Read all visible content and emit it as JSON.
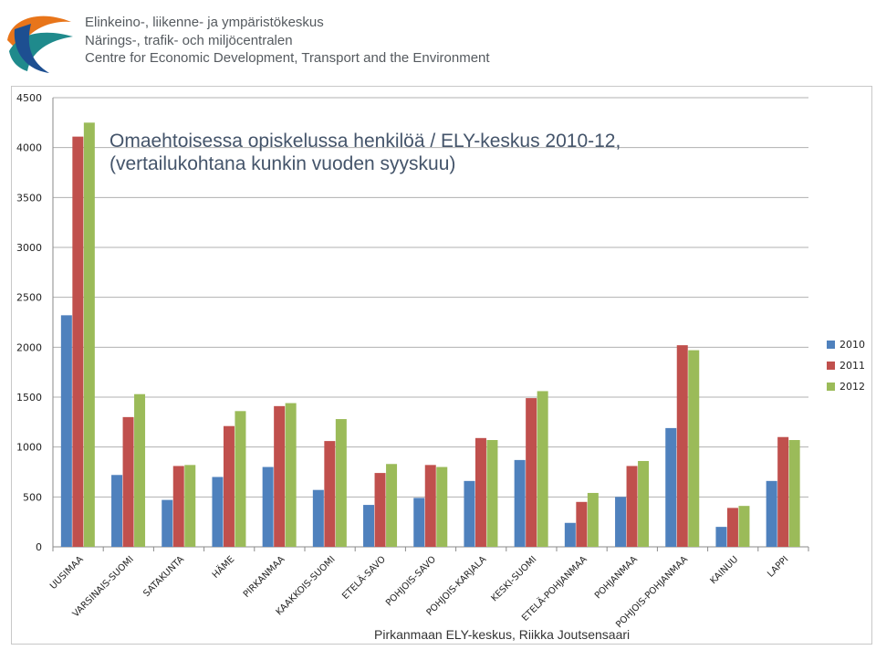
{
  "header": {
    "org_lines": [
      "Elinkeino-, liikenne- ja ympäristökeskus",
      "Närings-, trafik- och miljöcentralen",
      "Centre for Economic Development, Transport and the Environment"
    ],
    "logo_colors": {
      "orange": "#e8751a",
      "teal": "#1f8a8c",
      "navy": "#1d4f91"
    }
  },
  "footer": {
    "credit": "Pirkanmaan ELY-keskus, Riikka Joutsensaari"
  },
  "chart_data": {
    "type": "bar",
    "title_lines": [
      "Omaehtoisessa opiskelussa henkilöä / ELY-keskus 2010-12,",
      "(vertailukohtana kunkin vuoden syyskuu)"
    ],
    "xlabel": "",
    "ylabel": "",
    "ylim": [
      0,
      4500
    ],
    "yticks": [
      0,
      500,
      1000,
      1500,
      2000,
      2500,
      3000,
      3500,
      4000,
      4500
    ],
    "grid": true,
    "legend_position": "right",
    "categories": [
      "UUSIMAA",
      "VARSINAIS-SUOMI",
      "SATAKUNTA",
      "HÄME",
      "PIRKANMAA",
      "KAAKKOIS-SUOMI",
      "ETELÄ-SAVO",
      "POHJOIS-SAVO",
      "POHJOIS-KARJALA",
      "KESKI-SUOMI",
      "ETELÄ-POHJANMAA",
      "POHJANMAA",
      "POHJOIS-POHJANMAA",
      "KAINUU",
      "LAPPI"
    ],
    "series": [
      {
        "name": "2010",
        "color": "#4f81bd",
        "values": [
          2320,
          720,
          470,
          700,
          800,
          570,
          420,
          490,
          660,
          870,
          240,
          500,
          1190,
          200,
          660
        ]
      },
      {
        "name": "2011",
        "color": "#c0504d",
        "values": [
          4110,
          1300,
          810,
          1210,
          1410,
          1060,
          740,
          820,
          1090,
          1490,
          450,
          810,
          2020,
          390,
          1100
        ]
      },
      {
        "name": "2012",
        "color": "#9bbb59",
        "values": [
          4250,
          1530,
          820,
          1360,
          1440,
          1280,
          830,
          800,
          1070,
          1560,
          540,
          860,
          1970,
          410,
          1070
        ]
      }
    ]
  }
}
